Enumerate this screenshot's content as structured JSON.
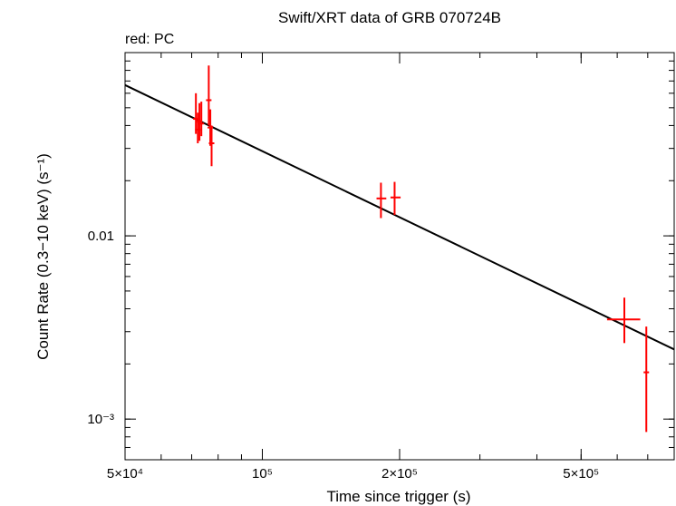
{
  "chart_data": {
    "type": "scatter",
    "title": "Swift/XRT data of GRB 070724B",
    "subtitle": "red: PC",
    "xlabel": "Time since trigger (s)",
    "ylabel": "Count Rate (0.3−10 keV) (s⁻¹)",
    "x_scale": "log",
    "y_scale": "log",
    "xlim": [
      50000,
      800000
    ],
    "ylim": [
      0.0006,
      0.1
    ],
    "x_ticks": [
      {
        "value": 50000,
        "label": "5×10⁴"
      },
      {
        "value": 100000,
        "label": "10⁵"
      },
      {
        "value": 200000,
        "label": "2×10⁵"
      },
      {
        "value": 500000,
        "label": "5×10⁵"
      }
    ],
    "y_ticks": [
      {
        "value": 0.01,
        "label": "0.01"
      },
      {
        "value": 0.001,
        "label": "10⁻³"
      }
    ],
    "grid": false,
    "series": [
      {
        "name": "PC",
        "color": "#ff0000",
        "points": [
          {
            "x": 71500,
            "y": 0.0435,
            "xerr": [
              300,
              300
            ],
            "yerr": [
              0.0075,
              0.0165
            ]
          },
          {
            "x": 72200,
            "y": 0.038,
            "xerr": [
              300,
              300
            ],
            "yerr": [
              0.006,
              0.009
            ]
          },
          {
            "x": 72800,
            "y": 0.042,
            "xerr": [
              300,
              300
            ],
            "yerr": [
              0.009,
              0.011
            ]
          },
          {
            "x": 73500,
            "y": 0.041,
            "xerr": [
              300,
              300
            ],
            "yerr": [
              0.006,
              0.013
            ]
          },
          {
            "x": 76300,
            "y": 0.055,
            "xerr": [
              200,
              200
            ],
            "yerr": [
              0.015,
              0.03
            ]
          },
          {
            "x": 76900,
            "y": 0.039,
            "xerr": [
              200,
              200
            ],
            "yerr": [
              0.008,
              0.01
            ]
          },
          {
            "x": 77400,
            "y": 0.032,
            "xerr": [
              200,
              200
            ],
            "yerr": [
              0.008,
              0.008
            ]
          },
          {
            "x": 182000,
            "y": 0.016,
            "xerr": [
              4000,
              5000
            ],
            "yerr": [
              0.0035,
              0.0035
            ]
          },
          {
            "x": 195000,
            "y": 0.0162,
            "xerr": [
              4000,
              6000
            ],
            "yerr": [
              0.0032,
              0.0035
            ]
          },
          {
            "x": 622000,
            "y": 0.0035,
            "xerr": [
              52000,
              52000
            ],
            "yerr": [
              0.0009,
              0.0011
            ]
          },
          {
            "x": 695000,
            "y": 0.0018,
            "xerr": [
              5000,
              5000
            ],
            "yerr": [
              0.00095,
              0.0014
            ]
          }
        ]
      }
    ],
    "model": {
      "type": "power-law",
      "color": "#000000",
      "x": [
        50000,
        800000
      ],
      "y": [
        0.0665,
        0.0024
      ]
    }
  }
}
